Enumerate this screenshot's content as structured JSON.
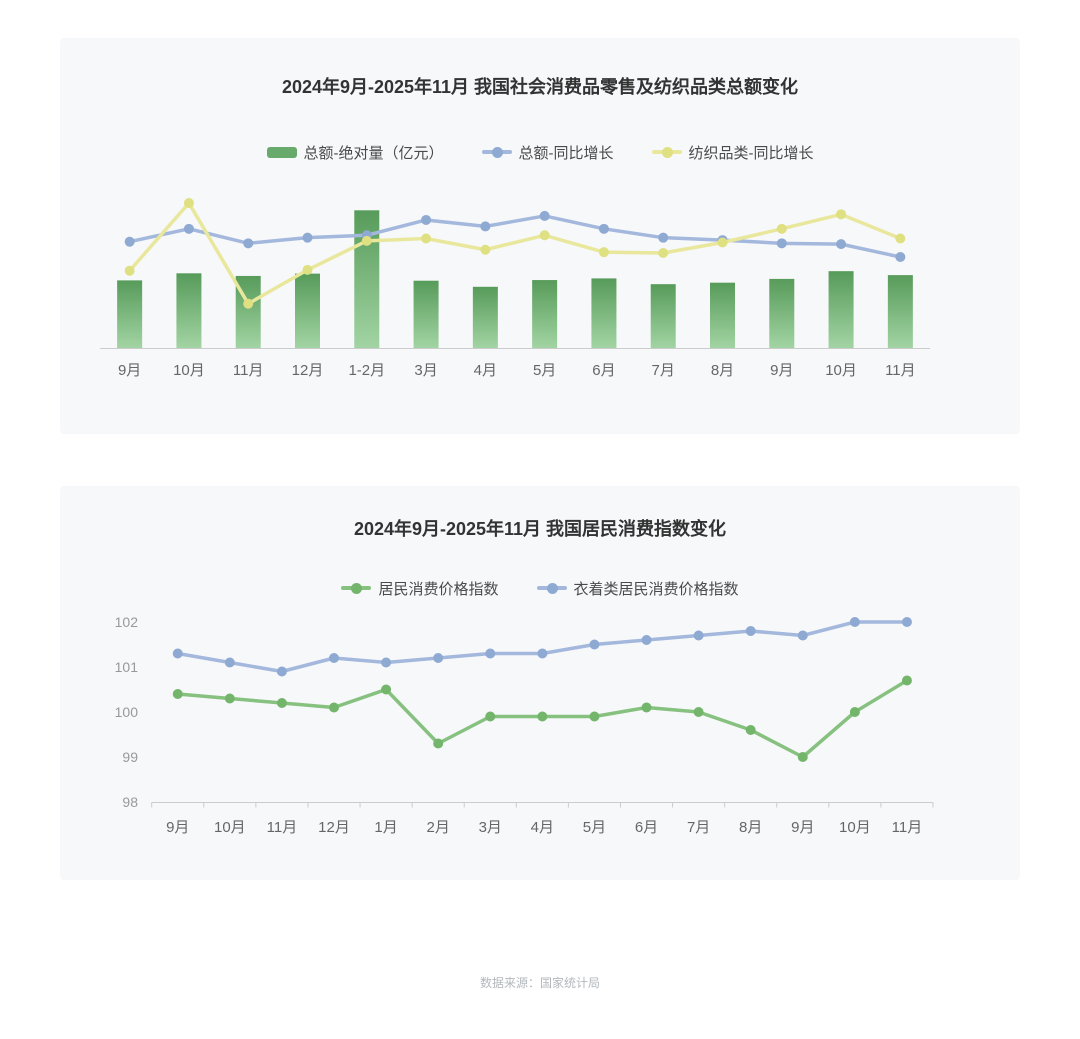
{
  "page": {
    "footer_note": "数据来源：国家统计局"
  },
  "chart_data": [
    {
      "type": "bar",
      "subtype": "bar+line combo, dual hidden y axes",
      "title": "2024年9月-2025年11月 我国社会消费品零售及纺织品类总额变化",
      "legend_position": "top-center",
      "grid": false,
      "categories": [
        "9月",
        "10月",
        "11月",
        "12月",
        "1-2月",
        "3月",
        "4月",
        "5月",
        "6月",
        "7月",
        "8月",
        "9月",
        "10月",
        "11月"
      ],
      "series": [
        {
          "name": "总额-绝对量（亿元）",
          "type": "bar",
          "y_axis": "left",
          "swatch_color": "#68aa6b",
          "bar_gradient_top": "#579b5a",
          "bar_gradient_bottom": "#a2d4a3",
          "values": [
            41100,
            45400,
            43800,
            45200,
            83700,
            40900,
            37200,
            41300,
            42300,
            38800,
            39700,
            42000,
            46700,
            44300
          ]
        },
        {
          "name": "总额-同比增长",
          "type": "line",
          "y_axis": "right",
          "unit": "%",
          "line_color": "#a3b8dc",
          "dot_color": "#8ea9d2",
          "values": [
            3.2,
            4.8,
            3.0,
            3.7,
            4.0,
            5.9,
            5.1,
            6.4,
            4.8,
            3.7,
            3.4,
            3.0,
            2.9,
            1.3
          ]
        },
        {
          "name": "纺织品类-同比增长",
          "type": "line",
          "y_axis": "right",
          "unit": "%",
          "line_color": "#e8e79c",
          "dot_color": "#dfe081",
          "values": [
            -0.4,
            8.0,
            -4.5,
            -0.3,
            3.3,
            3.6,
            2.2,
            4.0,
            1.9,
            1.8,
            3.1,
            4.8,
            6.6,
            3.6
          ]
        }
      ],
      "y1": {
        "min": 0,
        "max": 93000,
        "axis_visible": false
      },
      "y2": {
        "min": -10,
        "max": 9,
        "axis_visible": false
      },
      "x_axis_line_color": "#cccccc",
      "x_label_color": "#666666"
    },
    {
      "type": "line",
      "title": "2024年9月-2025年11月 我国居民消费指数变化",
      "legend_position": "top-center",
      "grid": false,
      "categories": [
        "9月",
        "10月",
        "11月",
        "12月",
        "1月",
        "2月",
        "3月",
        "4月",
        "5月",
        "6月",
        "7月",
        "8月",
        "9月",
        "10月",
        "11月"
      ],
      "series": [
        {
          "name": "居民消费价格指数",
          "type": "line",
          "line_color": "#86c17f",
          "dot_color": "#74b56c",
          "values": [
            100.4,
            100.3,
            100.2,
            100.1,
            100.5,
            99.3,
            99.9,
            99.9,
            99.9,
            100.1,
            100.0,
            99.6,
            99.0,
            100.0,
            100.7
          ]
        },
        {
          "name": "衣着类居民消费价格指数",
          "type": "line",
          "line_color": "#a3b8dc",
          "dot_color": "#8ea9d2",
          "values": [
            101.3,
            101.1,
            100.9,
            101.2,
            101.1,
            101.2,
            101.3,
            101.3,
            101.5,
            101.6,
            101.7,
            101.8,
            101.7,
            102.0,
            102.0
          ]
        }
      ],
      "ylim": [
        98,
        102
      ],
      "y_ticks": [
        98,
        99,
        100,
        101,
        102
      ],
      "y_label_color": "#999999",
      "x_axis_line_color": "#cccccc",
      "x_label_color": "#666666"
    }
  ]
}
